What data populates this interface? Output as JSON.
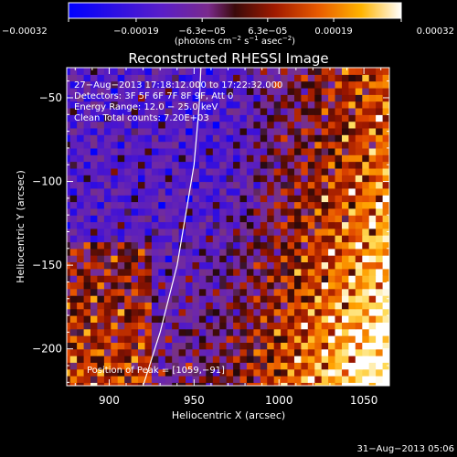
{
  "chart_data": {
    "type": "heatmap",
    "title": "Reconstructed RHESSI Image",
    "xlabel": "Heliocentric X (arcsec)",
    "ylabel": "Heliocentric Y (arcsec)",
    "xlim": [
      875,
      1065
    ],
    "ylim": [
      -222,
      -32
    ],
    "x_ticks": [
      900,
      950,
      1000,
      1050
    ],
    "x_tick_labels": [
      "900",
      "950",
      "1000",
      "1050"
    ],
    "y_ticks": [
      -200,
      -150,
      -100,
      -50
    ],
    "y_tick_labels": [
      "−200",
      "−150",
      "−100",
      "−50"
    ],
    "colorbar": {
      "min": -0.00032,
      "max": 0.00032,
      "ticks": [
        -0.00032,
        -0.00019,
        -6.3e-05,
        6.3e-05,
        0.00019,
        0.00032
      ],
      "tick_labels": [
        "−0.00032",
        "−0.00019",
        "−6.3e−05",
        "6.3e−05",
        "0.00019",
        "0.00032"
      ],
      "unit_parts": [
        "(photons cm",
        "−2",
        " s",
        "−1",
        " asec",
        "−2",
        ")"
      ]
    },
    "annotations": [
      "27−Aug−2013 17:18:12.000 to 17:22:32.000",
      "Detectors: 3F 5F 6F 7F 8F 9F, Att 0",
      "Energy Range: 12.0 − 25.0 keV",
      "Clean     Total counts: 7.20E+03"
    ],
    "peak_label": "Position of Peak = [1059,−91]",
    "limb_curve": [
      [
        920,
        -222
      ],
      [
        930,
        -190
      ],
      [
        940,
        -150
      ],
      [
        945,
        -120
      ],
      [
        950,
        -90
      ],
      [
        953,
        -55
      ],
      [
        954,
        -32
      ]
    ],
    "grid": false
  },
  "footer": {
    "timestamp": "31−Aug−2013 05:06"
  },
  "colors": {
    "background": "#000000",
    "text": "#ffffff",
    "colormap": [
      "#0000ff",
      "#5a1ec8",
      "#7a2a8c",
      "#3a0a0a",
      "#8c1400",
      "#dc3200",
      "#ff7800",
      "#ffb400",
      "#ffeb6e",
      "#ffffff"
    ]
  }
}
